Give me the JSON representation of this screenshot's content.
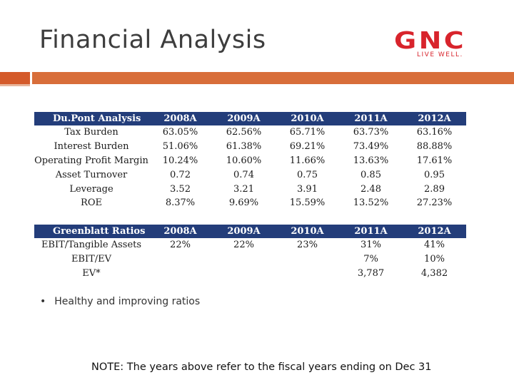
{
  "slide": {
    "title": "Financial Analysis",
    "logo": {
      "name": "GNC",
      "tagline": "LIVE WELL.",
      "color": "#d8242c"
    }
  },
  "colors": {
    "accent_bar": "#d86e3a",
    "table_header": "#233d7a"
  },
  "dupont": {
    "header": [
      "Du.Pont Analysis",
      "2008A",
      "2009A",
      "2010A",
      "2011A",
      "2012A"
    ],
    "rows": [
      [
        "Tax Burden",
        "63.05%",
        "62.56%",
        "65.71%",
        "63.73%",
        "63.16%"
      ],
      [
        "Interest Burden",
        "51.06%",
        "61.38%",
        "69.21%",
        "73.49%",
        "88.88%"
      ],
      [
        "Operating Profit Margin",
        "10.24%",
        "10.60%",
        "11.66%",
        "13.63%",
        "17.61%"
      ],
      [
        "Asset Turnover",
        "0.72",
        "0.74",
        "0.75",
        "0.85",
        "0.95"
      ],
      [
        "Leverage",
        "3.52",
        "3.21",
        "3.91",
        "2.48",
        "2.89"
      ],
      [
        "ROE",
        "8.37%",
        "9.69%",
        "15.59%",
        "13.52%",
        "27.23%"
      ]
    ]
  },
  "greenblatt": {
    "header": [
      "Greenblatt Ratios",
      "2008A",
      "2009A",
      "2010A",
      "2011A",
      "2012A"
    ],
    "rows": [
      [
        "EBIT/Tangible Assets",
        "22%",
        "22%",
        "23%",
        "31%",
        "41%"
      ],
      [
        "EBIT/EV",
        "",
        "",
        "",
        "7%",
        "10%"
      ],
      [
        "EV*",
        "",
        "",
        "",
        "3,787",
        "4,382"
      ]
    ]
  },
  "bullets": [
    "Healthy and improving ratios"
  ],
  "note": "NOTE: The years above refer to the fiscal years ending on Dec 31"
}
